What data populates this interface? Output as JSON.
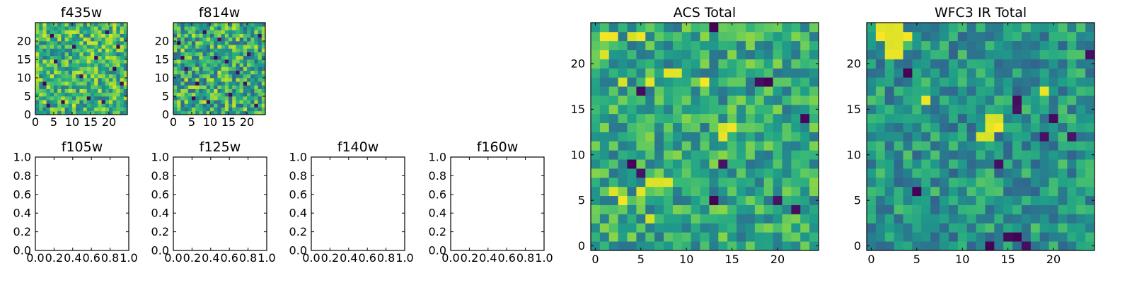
{
  "colors": {
    "colormap": "viridis",
    "frame": "#000000",
    "background": "#ffffff"
  },
  "chart_data": [
    {
      "id": "f435w",
      "type": "heatmap",
      "title": "f435w",
      "grid_size": 25,
      "xlim": [
        0,
        25
      ],
      "ylim": [
        0,
        25
      ],
      "xticks": [
        0,
        5,
        10,
        15,
        20
      ],
      "yticks": [
        0,
        5,
        10,
        15,
        20
      ],
      "xtick_labels": [
        "0",
        "5",
        "10",
        "15",
        "20"
      ],
      "ytick_labels": [
        "0",
        "5",
        "10",
        "15",
        "20"
      ],
      "xlabel": "",
      "ylabel": "",
      "value_range": [
        0,
        1
      ],
      "bright_regions": [],
      "dark_pixels": [
        [
          2,
          8
        ],
        [
          7,
          3
        ],
        [
          14,
          4
        ],
        [
          18,
          3
        ],
        [
          21,
          12
        ],
        [
          10,
          18
        ],
        [
          4,
          21
        ],
        [
          16,
          15
        ],
        [
          23,
          8
        ],
        [
          12,
          10
        ],
        [
          5,
          14
        ],
        [
          19,
          22
        ],
        [
          3,
          2
        ],
        [
          22,
          18
        ]
      ],
      "seed": 11,
      "base": 0.66,
      "spread": 0.55
    },
    {
      "id": "f814w",
      "type": "heatmap",
      "title": "f814w",
      "grid_size": 25,
      "xlim": [
        0,
        25
      ],
      "ylim": [
        0,
        25
      ],
      "xticks": [
        0,
        5,
        10,
        15,
        20
      ],
      "yticks": [
        0,
        5,
        10,
        15,
        20
      ],
      "xtick_labels": [
        "0",
        "5",
        "10",
        "15",
        "20"
      ],
      "ytick_labels": [
        "0",
        "5",
        "10",
        "15",
        "20"
      ],
      "xlabel": "",
      "ylabel": "",
      "value_range": [
        0,
        1
      ],
      "bright_regions": [],
      "dark_pixels": [
        [
          9,
          3
        ],
        [
          15,
          5
        ],
        [
          3,
          12
        ],
        [
          20,
          16
        ],
        [
          12,
          20
        ],
        [
          6,
          8
        ],
        [
          17,
          11
        ],
        [
          22,
          2
        ],
        [
          1,
          19
        ],
        [
          8,
          22
        ],
        [
          14,
          14
        ],
        [
          5,
          4
        ],
        [
          19,
          8
        ],
        [
          11,
          15
        ],
        [
          23,
          21
        ],
        [
          2,
          15
        ]
      ],
      "seed": 23,
      "base": 0.62,
      "spread": 0.6
    },
    {
      "id": "f105w",
      "type": "empty",
      "title": "f105w",
      "xlim": [
        0,
        1
      ],
      "ylim": [
        0,
        1
      ],
      "xtick_labels": [
        "0.0",
        "0.2",
        "0.4",
        "0.6",
        "0.8",
        "1.0"
      ],
      "ytick_labels": [
        "0.0",
        "0.2",
        "0.4",
        "0.6",
        "0.8",
        "1.0"
      ]
    },
    {
      "id": "f125w",
      "type": "empty",
      "title": "f125w",
      "xlim": [
        0,
        1
      ],
      "ylim": [
        0,
        1
      ],
      "xtick_labels": [
        "0.0",
        "0.2",
        "0.4",
        "0.6",
        "0.8",
        "1.0"
      ],
      "ytick_labels": [
        "0.0",
        "0.2",
        "0.4",
        "0.6",
        "0.8",
        "1.0"
      ]
    },
    {
      "id": "f140w",
      "type": "empty",
      "title": "f140w",
      "xlim": [
        0,
        1
      ],
      "ylim": [
        0,
        1
      ],
      "xtick_labels": [
        "0.0",
        "0.2",
        "0.4",
        "0.6",
        "0.8",
        "1.0"
      ],
      "ytick_labels": [
        "0.0",
        "0.2",
        "0.4",
        "0.6",
        "0.8",
        "1.0"
      ]
    },
    {
      "id": "f160w",
      "type": "empty",
      "title": "f160w",
      "xlim": [
        0,
        1
      ],
      "ylim": [
        0,
        1
      ],
      "xtick_labels": [
        "0.0",
        "0.2",
        "0.4",
        "0.6",
        "0.8",
        "1.0"
      ],
      "ytick_labels": [
        "0.0",
        "0.2",
        "0.4",
        "0.6",
        "0.8",
        "1.0"
      ]
    },
    {
      "id": "acs_total",
      "type": "heatmap",
      "title": "ACS Total",
      "grid_size": 25,
      "xlim": [
        -0.5,
        24.5
      ],
      "ylim": [
        -0.5,
        24.5
      ],
      "xticks": [
        0,
        5,
        10,
        15,
        20
      ],
      "yticks": [
        0,
        5,
        10,
        15,
        20
      ],
      "xtick_labels": [
        "0",
        "5",
        "10",
        "15",
        "20"
      ],
      "ytick_labels": [
        "0",
        "5",
        "10",
        "15",
        "20"
      ],
      "xlabel": "",
      "ylabel": "",
      "value_range": [
        0,
        1
      ],
      "bright_regions": [
        [
          1,
          23
        ],
        [
          2,
          23
        ],
        [
          4,
          23
        ],
        [
          5,
          23
        ],
        [
          1,
          21
        ],
        [
          8,
          19
        ],
        [
          9,
          19
        ],
        [
          3,
          18
        ],
        [
          6,
          18
        ],
        [
          12,
          18
        ],
        [
          14,
          13
        ],
        [
          15,
          13
        ],
        [
          14,
          12
        ],
        [
          6,
          7
        ],
        [
          7,
          7
        ],
        [
          8,
          7
        ],
        [
          5,
          6
        ],
        [
          2,
          6
        ],
        [
          3,
          5
        ],
        [
          6,
          3
        ]
      ],
      "dark_pixels": [
        [
          13,
          24
        ],
        [
          18,
          18
        ],
        [
          19,
          18
        ],
        [
          5,
          17
        ],
        [
          23,
          14
        ],
        [
          4,
          9
        ],
        [
          5,
          8
        ],
        [
          14,
          9
        ],
        [
          13,
          5
        ],
        [
          20,
          5
        ],
        [
          22,
          4
        ]
      ],
      "seed": 37,
      "base": 0.6,
      "spread": 0.45
    },
    {
      "id": "wfc3_total",
      "type": "heatmap",
      "title": "WFC3 IR Total",
      "grid_size": 25,
      "xlim": [
        -0.5,
        24.5
      ],
      "ylim": [
        -0.5,
        24.5
      ],
      "xticks": [
        0,
        5,
        10,
        15,
        20
      ],
      "yticks": [
        0,
        5,
        10,
        15,
        20
      ],
      "xtick_labels": [
        "0",
        "5",
        "10",
        "15",
        "20"
      ],
      "ytick_labels": [
        "0",
        "5",
        "10",
        "15",
        "20"
      ],
      "xlabel": "",
      "ylabel": "",
      "value_range": [
        0,
        1
      ],
      "bright_regions": [
        [
          1,
          24
        ],
        [
          2,
          24
        ],
        [
          3,
          24
        ],
        [
          1,
          23
        ],
        [
          2,
          23
        ],
        [
          3,
          23
        ],
        [
          4,
          23
        ],
        [
          2,
          22
        ],
        [
          3,
          22
        ],
        [
          2,
          21
        ],
        [
          3,
          21
        ],
        [
          13,
          14
        ],
        [
          14,
          14
        ],
        [
          13,
          13
        ],
        [
          14,
          13
        ],
        [
          12,
          12
        ],
        [
          13,
          12
        ],
        [
          6,
          16
        ],
        [
          19,
          17
        ]
      ],
      "dark_pixels": [
        [
          4,
          19
        ],
        [
          16,
          16
        ],
        [
          16,
          15
        ],
        [
          20,
          14
        ],
        [
          19,
          12
        ],
        [
          22,
          12
        ],
        [
          14,
          9
        ],
        [
          5,
          6
        ],
        [
          15,
          1
        ],
        [
          16,
          1
        ],
        [
          13,
          0
        ],
        [
          17,
          0
        ],
        [
          24,
          21
        ]
      ],
      "seed": 53,
      "base": 0.52,
      "spread": 0.42
    }
  ]
}
